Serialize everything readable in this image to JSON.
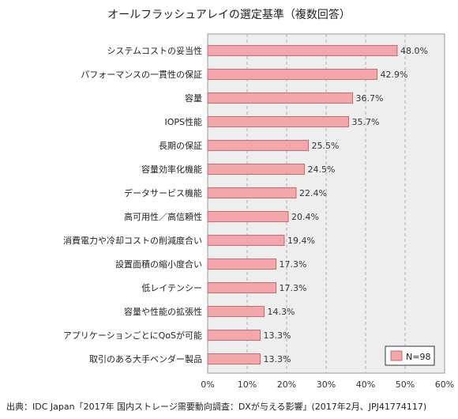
{
  "chart_data": {
    "type": "bar",
    "orientation": "horizontal",
    "title": "オールフラッシュアレイの選定基準（複数回答）",
    "categories": [
      "システムコストの妥当性",
      "パフォーマンスの一貫性の保証",
      "容量",
      "IOPS性能",
      "長期の保証",
      "容量効率化機能",
      "データサービス機能",
      "高可用性／高信頼性",
      "消費電力や冷却コストの削減度合い",
      "設置面積の縮小度合い",
      "低レイテンシー",
      "容量や性能の拡張性",
      "アプリケーションごとにQoSが可能",
      "取引のある大手ベンダー製品"
    ],
    "values": [
      48.0,
      42.9,
      36.7,
      35.7,
      25.5,
      24.5,
      22.4,
      20.4,
      19.4,
      17.3,
      17.3,
      14.3,
      13.3,
      13.3
    ],
    "value_labels": [
      "48.0%",
      "42.9%",
      "36.7%",
      "35.7%",
      "25.5%",
      "24.5%",
      "22.4%",
      "20.4%",
      "19.4%",
      "17.3%",
      "17.3%",
      "14.3%",
      "13.3%",
      "13.3%"
    ],
    "xlim": [
      0,
      60
    ],
    "x_ticks": [
      "0%",
      "10%",
      "20%",
      "30%",
      "40%",
      "50%",
      "60%"
    ],
    "grid": true,
    "legend": {
      "label": "N=98",
      "placement": "bottom-right"
    },
    "bar_color": "#f2a7ab",
    "bar_edge_color": "#c96a70",
    "plot_bg": "#eeeeee"
  },
  "source": "出典：IDC Japan「2017年 国内ストレージ需要動向調査：DXが与える影響」(2017年2月、JPJ41774117)"
}
